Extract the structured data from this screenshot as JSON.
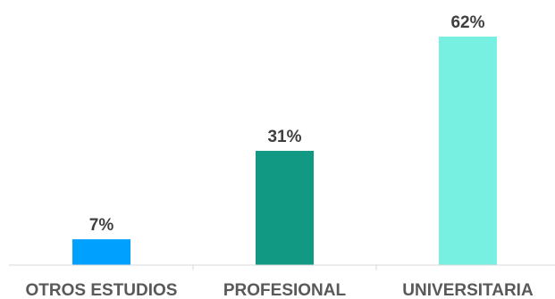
{
  "chart_data": {
    "type": "bar",
    "title": "",
    "categories": [
      "OTROS ESTUDIOS",
      "PROFESIONAL",
      "UNIVERSITARIA"
    ],
    "values": [
      7,
      31,
      62
    ],
    "data_labels": [
      "7%",
      "31%",
      "62%"
    ],
    "colors": [
      "#00a0ff",
      "#119984",
      "#77f0e2"
    ],
    "ylim": [
      0,
      62
    ],
    "grid": false,
    "legend": "none",
    "xlabel": "",
    "ylabel": ""
  }
}
